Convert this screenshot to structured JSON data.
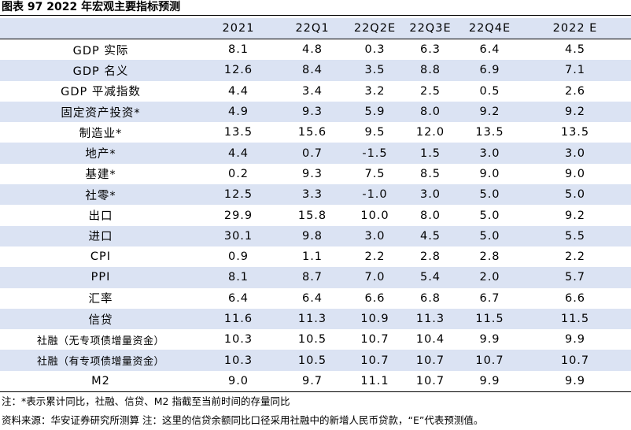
{
  "title": "图表 97 2022 年宏观主要指标预测",
  "columns": [
    "",
    "2021",
    "22Q1",
    "22Q2E",
    "22Q3E",
    "22Q4E",
    "2022 E"
  ],
  "rows": [
    {
      "name": "GDP 实际",
      "values": [
        "8.1",
        "4.8",
        "0.3",
        "6.3",
        "6.4",
        "4.5"
      ]
    },
    {
      "name": "GDP 名义",
      "values": [
        "12.6",
        "8.4",
        "3.5",
        "8.8",
        "6.9",
        "7.1"
      ]
    },
    {
      "name": "GDP 平减指数",
      "values": [
        "4.4",
        "3.4",
        "3.2",
        "2.5",
        "0.5",
        "2.6"
      ]
    },
    {
      "name": "固定资产投资*",
      "values": [
        "4.9",
        "9.3",
        "5.9",
        "8.0",
        "9.2",
        "9.2"
      ]
    },
    {
      "name": "制造业*",
      "values": [
        "13.5",
        "15.6",
        "9.5",
        "12.0",
        "13.5",
        "13.5"
      ]
    },
    {
      "name": "地产*",
      "values": [
        "4.4",
        "0.7",
        "-1.5",
        "1.5",
        "3.0",
        "3.0"
      ]
    },
    {
      "name": "基建*",
      "values": [
        "0.2",
        "9.3",
        "7.5",
        "8.5",
        "9.0",
        "9.0"
      ]
    },
    {
      "name": "社零*",
      "values": [
        "12.5",
        "3.3",
        "-1.0",
        "3.0",
        "5.0",
        "5.0"
      ]
    },
    {
      "name": "出口",
      "values": [
        "29.9",
        "15.8",
        "10.0",
        "8.0",
        "5.0",
        "9.2"
      ]
    },
    {
      "name": "进口",
      "values": [
        "30.1",
        "9.8",
        "3.0",
        "4.5",
        "5.0",
        "5.5"
      ]
    },
    {
      "name": "CPI",
      "values": [
        "0.9",
        "1.1",
        "2.2",
        "2.8",
        "2.8",
        "2.2"
      ]
    },
    {
      "name": "PPI",
      "values": [
        "8.1",
        "8.7",
        "7.0",
        "5.4",
        "2.0",
        "5.7"
      ]
    },
    {
      "name": "汇率",
      "values": [
        "6.4",
        "6.4",
        "6.6",
        "6.8",
        "6.7",
        "6.6"
      ]
    },
    {
      "name": "信贷",
      "values": [
        "11.6",
        "11.3",
        "10.9",
        "11.3",
        "11.5",
        "11.5"
      ]
    },
    {
      "name": "社融（无专项债增量资金）",
      "values": [
        "10.3",
        "10.5",
        "10.7",
        "10.4",
        "9.9",
        "9.9"
      ]
    },
    {
      "name": "社融（有专项债增量资金）",
      "values": [
        "10.3",
        "10.5",
        "10.7",
        "10.7",
        "10.7",
        "10.7"
      ]
    },
    {
      "name": "M2",
      "values": [
        "9.0",
        "9.7",
        "11.1",
        "10.7",
        "9.9",
        "9.9"
      ]
    }
  ],
  "notes": {
    "note1": "注：*表示累计同比，社融、信贷、M2 指截至当前时间的存量同比",
    "note2": "资料来源：华安证券研究所测算 注：这里的信贷余额同比口径采用社融中的新增人民币贷款，“E”代表预测值。"
  }
}
